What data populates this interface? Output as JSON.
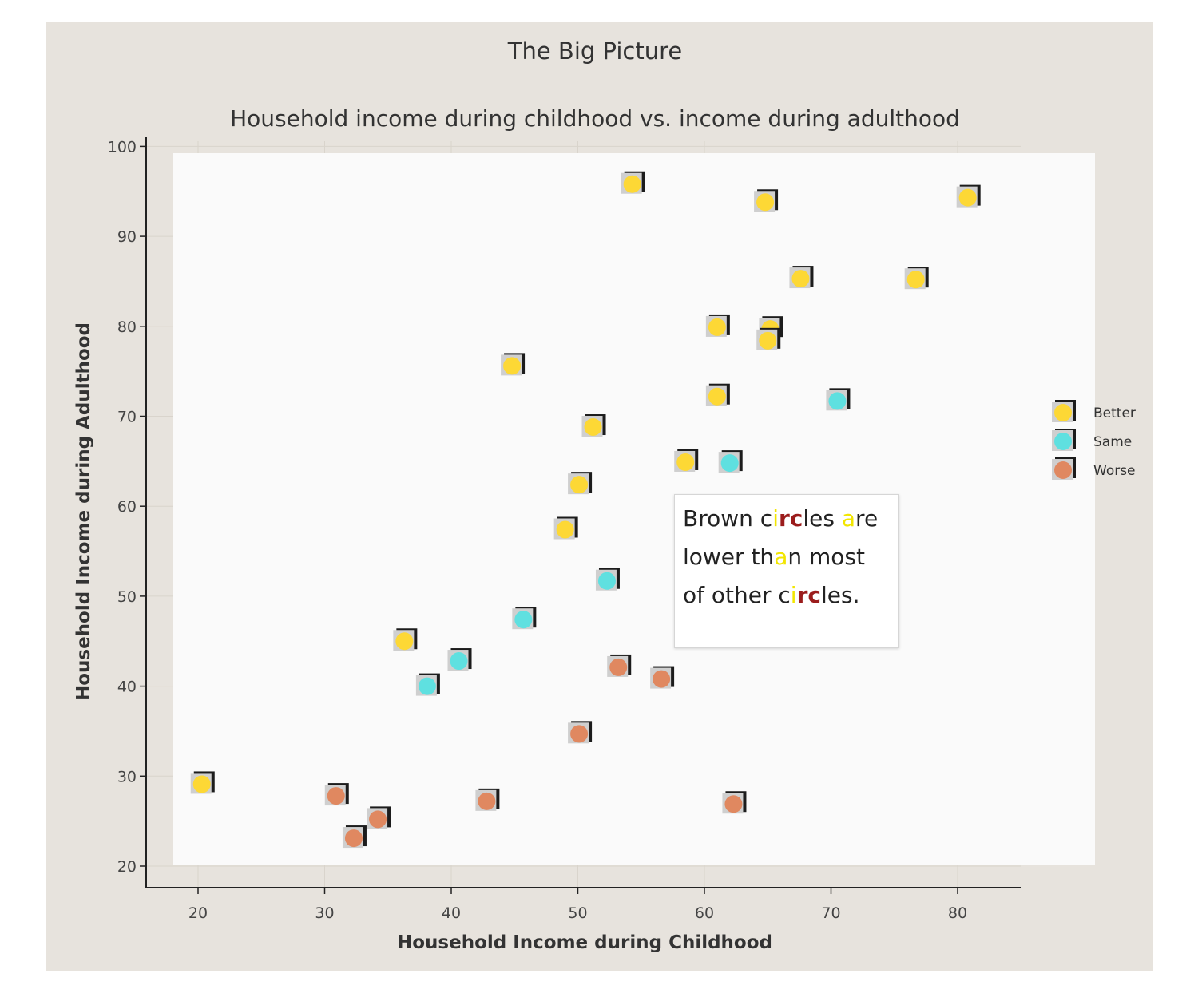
{
  "chart_data": {
    "type": "scatter",
    "title": "The Big Picture",
    "subtitle": "Household income during childhood vs. income during adulthood",
    "xlabel": "Household Income during Childhood",
    "ylabel": "Household Income during Adulthood",
    "xlim": [
      16,
      85
    ],
    "ylim": [
      17.5,
      101
    ],
    "xticks": [
      20,
      30,
      40,
      50,
      60,
      70,
      80
    ],
    "yticks": [
      20,
      30,
      40,
      50,
      60,
      70,
      80,
      90,
      100
    ],
    "grid": true,
    "legend_position": "right",
    "series": [
      {
        "name": "Better",
        "color": "#fdd835",
        "points": [
          [
            54.3,
            95.8
          ],
          [
            64.8,
            93.8
          ],
          [
            80.8,
            94.3
          ],
          [
            67.6,
            85.3
          ],
          [
            76.7,
            85.2
          ],
          [
            61.0,
            79.9
          ],
          [
            65.2,
            79.7
          ],
          [
            65.0,
            78.4
          ],
          [
            44.8,
            75.6
          ],
          [
            61.0,
            72.2
          ],
          [
            51.2,
            68.8
          ],
          [
            58.5,
            64.9
          ],
          [
            50.1,
            62.4
          ],
          [
            49.0,
            57.4
          ],
          [
            36.3,
            45.0
          ],
          [
            20.3,
            29.1
          ]
        ]
      },
      {
        "name": "Same",
        "color": "#5fe0e0",
        "points": [
          [
            70.5,
            71.7
          ],
          [
            62.0,
            64.8
          ],
          [
            52.3,
            51.7
          ],
          [
            45.7,
            47.4
          ],
          [
            40.6,
            42.8
          ],
          [
            38.1,
            40.0
          ]
        ]
      },
      {
        "name": "Worse",
        "color": "#e08860",
        "points": [
          [
            53.2,
            42.1
          ],
          [
            56.6,
            40.8
          ],
          [
            50.1,
            34.7
          ],
          [
            30.9,
            27.8
          ],
          [
            42.8,
            27.2
          ],
          [
            62.3,
            26.9
          ],
          [
            34.2,
            25.2
          ],
          [
            32.3,
            23.1
          ]
        ]
      }
    ],
    "annotation": {
      "lines": [
        [
          {
            "t": "Brown c",
            "s": ""
          },
          {
            "t": "i",
            "s": "yellow"
          },
          {
            "t": "rc",
            "s": "red"
          },
          {
            "t": "les ",
            "s": ""
          },
          {
            "t": "a",
            "s": "yellow"
          },
          {
            "t": "re",
            "s": ""
          }
        ],
        [
          {
            "t": "lower th",
            "s": ""
          },
          {
            "t": "a",
            "s": "yellow"
          },
          {
            "t": "n most",
            "s": ""
          }
        ],
        [
          {
            "t": "of other c",
            "s": ""
          },
          {
            "t": "i",
            "s": "yellow"
          },
          {
            "t": "rc",
            "s": "red"
          },
          {
            "t": "les.",
            "s": ""
          }
        ]
      ]
    }
  }
}
